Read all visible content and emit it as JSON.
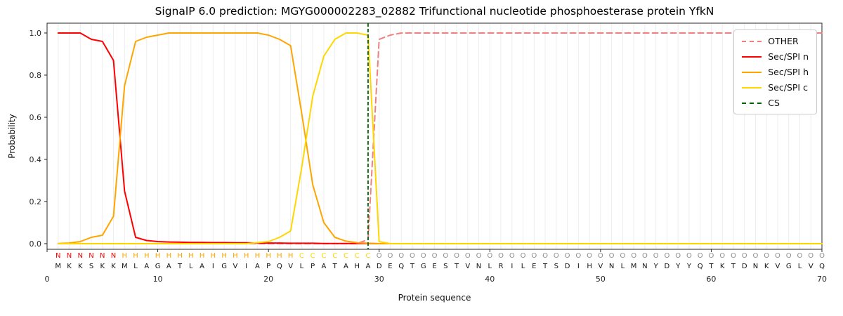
{
  "title": "SignalP 6.0 prediction: MGYG000002283_02882 Trifunctional nucleotide phosphoesterase protein YfkN",
  "axes": {
    "ylabel": "Probability",
    "xlabel": "Protein sequence"
  },
  "legend": {
    "items": [
      {
        "label": "OTHER",
        "color": "#f08080",
        "dash": true
      },
      {
        "label": "Sec/SPI n",
        "color": "#ff0000",
        "dash": false
      },
      {
        "label": "Sec/SPI h",
        "color": "#ffa500",
        "dash": false
      },
      {
        "label": "Sec/SPI c",
        "color": "#ffd700",
        "dash": false
      },
      {
        "label": "CS",
        "color": "#006400",
        "dash": true
      }
    ]
  },
  "sequence": {
    "residues": "MKKSKKMLAGATLAIGVIAPQVLPATAHADEQTGESTVNLRILETSDIHVNLMNYDYYQTKTDNKVGLVQ",
    "region_labels": "NNNNNNHHHHHHHHHHHHHHHHCCCCCCCOOOOOOOOOOOOOOOOOOOOOOOOOOOOOOOOOOOOOOOOO",
    "region_colors": {
      "N": "#ff0000",
      "H": "#ffa500",
      "C": "#ffd700",
      "O": "#8c8c8c"
    },
    "residue_color": "#111111"
  },
  "chart_data": {
    "type": "line",
    "title": "SignalP 6.0 prediction: MGYG000002283_02882 Trifunctional nucleotide phosphoesterase protein YfkN",
    "xlabel": "Protein sequence",
    "ylabel": "Probability",
    "xlim": [
      0,
      70
    ],
    "ylim": [
      -0.03,
      1.05
    ],
    "xticks": [
      0,
      10,
      20,
      30,
      40,
      50,
      60,
      70
    ],
    "yticks": [
      0.0,
      0.2,
      0.4,
      0.6,
      0.8,
      1.0
    ],
    "grid": "light vertical gridline at every residue position 1-70",
    "legend_position": "upper right",
    "cs_position": 29,
    "x_start": 1,
    "series": [
      {
        "name": "OTHER",
        "color": "#f08080",
        "dash": true,
        "values": [
          0,
          0,
          0,
          0,
          0,
          0,
          0,
          0,
          0,
          0,
          0,
          0,
          0,
          0,
          0,
          0,
          0,
          0,
          0,
          0,
          0,
          0,
          0,
          0,
          0,
          0,
          0,
          0,
          0.02,
          0.97,
          0.99,
          1.0,
          1.0,
          1.0,
          1.0,
          1.0,
          1.0,
          1.0,
          1.0,
          1.0,
          1.0,
          1.0,
          1.0,
          1.0,
          1.0,
          1.0,
          1.0,
          1.0,
          1.0,
          1.0,
          1.0,
          1.0,
          1.0,
          1.0,
          1.0,
          1.0,
          1.0,
          1.0,
          1.0,
          1.0,
          1.0,
          1.0,
          1.0,
          1.0,
          1.0,
          1.0,
          1.0,
          1.0,
          1.0,
          1.0
        ]
      },
      {
        "name": "Sec/SPI n",
        "color": "#ff0000",
        "dash": false,
        "values": [
          1.0,
          1.0,
          1.0,
          0.97,
          0.96,
          0.87,
          0.25,
          0.03,
          0.015,
          0.01,
          0.008,
          0.007,
          0.006,
          0.006,
          0.005,
          0.005,
          0.004,
          0.004,
          0.003,
          0.003,
          0.003,
          0.002,
          0.002,
          0.002,
          0.001,
          0.001,
          0.001,
          0.001,
          0.001,
          0,
          0,
          0,
          0,
          0,
          0,
          0,
          0,
          0,
          0,
          0,
          0,
          0,
          0,
          0,
          0,
          0,
          0,
          0,
          0,
          0,
          0,
          0,
          0,
          0,
          0,
          0,
          0,
          0,
          0,
          0,
          0,
          0,
          0,
          0,
          0,
          0,
          0,
          0,
          0,
          0
        ]
      },
      {
        "name": "Sec/SPI h",
        "color": "#ffa500",
        "dash": false,
        "values": [
          0.001,
          0.003,
          0.01,
          0.03,
          0.04,
          0.13,
          0.75,
          0.96,
          0.98,
          0.99,
          1.0,
          1.0,
          1.0,
          1.0,
          1.0,
          1.0,
          1.0,
          1.0,
          1.0,
          0.99,
          0.97,
          0.94,
          0.62,
          0.28,
          0.1,
          0.03,
          0.012,
          0.005,
          0.002,
          0,
          0,
          0,
          0,
          0,
          0,
          0,
          0,
          0,
          0,
          0,
          0,
          0,
          0,
          0,
          0,
          0,
          0,
          0,
          0,
          0,
          0,
          0,
          0,
          0,
          0,
          0,
          0,
          0,
          0,
          0,
          0,
          0,
          0,
          0,
          0,
          0,
          0,
          0,
          0,
          0
        ]
      },
      {
        "name": "Sec/SPI c",
        "color": "#ffd700",
        "dash": false,
        "values": [
          0,
          0,
          0,
          0,
          0,
          0,
          0,
          0,
          0,
          0,
          0,
          0,
          0,
          0,
          0,
          0,
          0,
          0,
          0.005,
          0.01,
          0.03,
          0.06,
          0.36,
          0.7,
          0.89,
          0.97,
          1.0,
          1.0,
          0.99,
          0.01,
          0,
          0,
          0,
          0,
          0,
          0,
          0,
          0,
          0,
          0,
          0,
          0,
          0,
          0,
          0,
          0,
          0,
          0,
          0,
          0,
          0,
          0,
          0,
          0,
          0,
          0,
          0,
          0,
          0,
          0,
          0,
          0,
          0,
          0,
          0,
          0,
          0,
          0,
          0,
          0
        ]
      }
    ]
  }
}
